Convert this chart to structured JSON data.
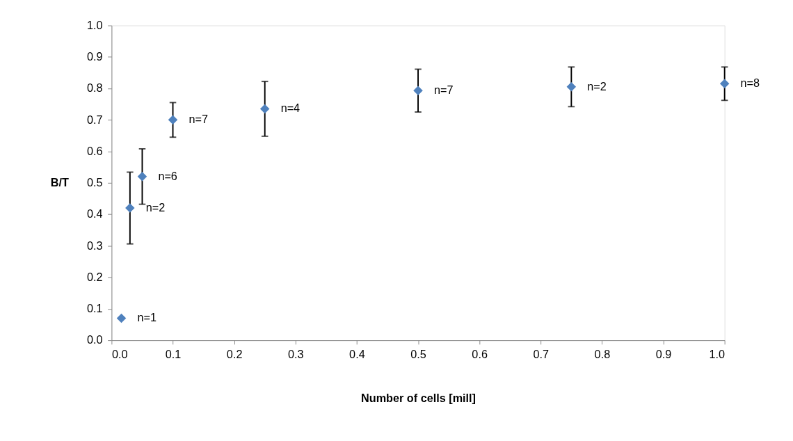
{
  "chart_data": {
    "type": "scatter",
    "xlabel": "Number of cells [mill]",
    "ylabel": "B/T",
    "x": [
      0.016,
      0.03,
      0.05,
      0.1,
      0.25,
      0.5,
      0.75,
      1.0
    ],
    "series": [
      {
        "color": "#4f81bd",
        "values": [
          0.07,
          0.42,
          0.52,
          0.7,
          0.735,
          0.793,
          0.805,
          0.815
        ],
        "errors": [
          null,
          0.114,
          0.088,
          0.055,
          0.087,
          0.068,
          0.063,
          0.053
        ]
      }
    ],
    "marker": "diamond",
    "xlim": [
      0,
      1
    ],
    "ylim": [
      0,
      1
    ],
    "xticks": [
      {
        "value": 0,
        "label": "0.0"
      },
      {
        "value": 0.1,
        "label": "0.1"
      },
      {
        "value": 0.2,
        "label": "0.2"
      },
      {
        "value": 0.3,
        "label": "0.3"
      },
      {
        "value": 0.4,
        "label": "0.4"
      },
      {
        "value": 0.5,
        "label": "0.5"
      },
      {
        "value": 0.6,
        "label": "0.6"
      },
      {
        "value": 0.7,
        "label": "0.7"
      },
      {
        "value": 0.8,
        "label": "0.8"
      },
      {
        "value": 0.9,
        "label": "0.9"
      },
      {
        "value": 1,
        "label": "1.0"
      }
    ],
    "yticks": [
      {
        "value": 0,
        "label": "0.0"
      },
      {
        "value": 0.1,
        "label": "0.1"
      },
      {
        "value": 0.2,
        "label": "0.2"
      },
      {
        "value": 0.3,
        "label": "0.3"
      },
      {
        "value": 0.4,
        "label": "0.4"
      },
      {
        "value": 0.5,
        "label": "0.5"
      },
      {
        "value": 0.6,
        "label": "0.6"
      },
      {
        "value": 0.7,
        "label": "0.7"
      },
      {
        "value": 0.8,
        "label": "0.8"
      },
      {
        "value": 0.9,
        "label": "0.9"
      },
      {
        "value": 1,
        "label": "1.0"
      }
    ],
    "annotations": [
      {
        "text": "n=1",
        "x": 0.016,
        "y": 0.07
      },
      {
        "text": "n=2",
        "x": 0.03,
        "y": 0.42
      },
      {
        "text": "n=6",
        "x": 0.05,
        "y": 0.52
      },
      {
        "text": "n=7",
        "x": 0.1,
        "y": 0.7
      },
      {
        "text": "n=4",
        "x": 0.25,
        "y": 0.735
      },
      {
        "text": "n=7",
        "x": 0.5,
        "y": 0.793
      },
      {
        "text": "n=2",
        "x": 0.75,
        "y": 0.805
      },
      {
        "text": "n=8",
        "x": 1.0,
        "y": 0.815
      }
    ]
  }
}
